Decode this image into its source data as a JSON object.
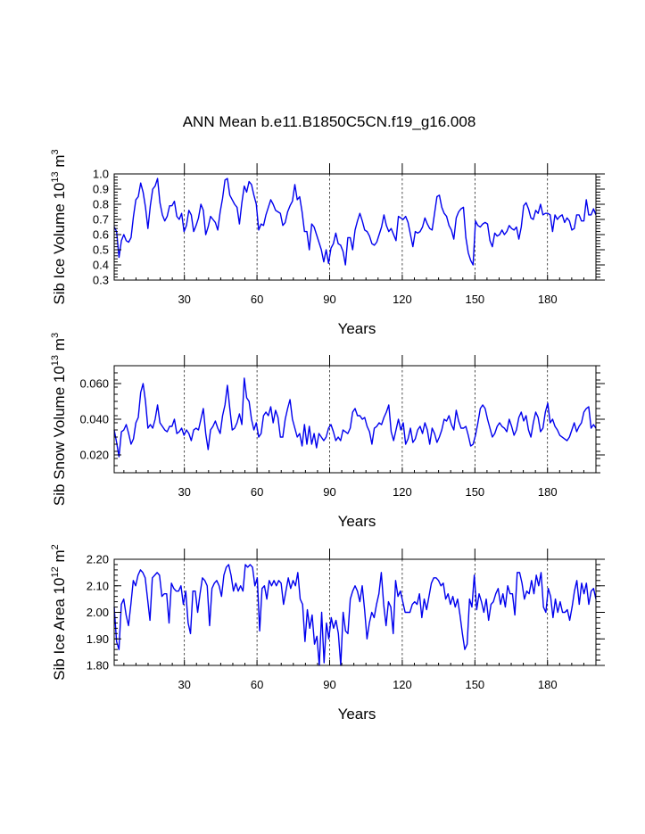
{
  "figure": {
    "title": "ANN Mean b.e11.B1850C5CN.f19_g16.008"
  },
  "colors": {
    "series": "#0000ee",
    "axes": "#000000",
    "background": "#ffffff"
  },
  "chart_data": [
    {
      "type": "line",
      "id": "vol",
      "ylabel": "Sib Ice Volume 10",
      "ylabel_exp": "13",
      "ylabel_unit": " m",
      "ylabel_unit_exp": "3",
      "xlabel": "Years",
      "xlim": [
        1,
        200
      ],
      "ylim": [
        0.3,
        1.0
      ],
      "xticks": [
        30,
        60,
        90,
        120,
        150,
        180
      ],
      "xtick_labels": [
        "30",
        "60",
        "90",
        "120",
        "150",
        "180"
      ],
      "yticks": [
        0.3,
        0.4,
        0.5,
        0.6,
        0.7,
        0.8,
        0.9,
        1.0
      ],
      "ytick_labels": [
        "0.3",
        "0.4",
        "0.5",
        "0.6",
        "0.7",
        "0.8",
        "0.9",
        "1.0"
      ],
      "yminor": 0.02,
      "grid": "dashed vertical lines at x ticks",
      "series": [
        {
          "name": "Sib Ice Volume",
          "values": [
            0.65,
            0.62,
            0.45,
            0.56,
            0.6,
            0.56,
            0.55,
            0.58,
            0.72,
            0.83,
            0.85,
            0.94,
            0.88,
            0.78,
            0.64,
            0.79,
            0.9,
            0.92,
            0.97,
            0.81,
            0.73,
            0.69,
            0.72,
            0.79,
            0.79,
            0.82,
            0.72,
            0.7,
            0.74,
            0.62,
            0.66,
            0.76,
            0.73,
            0.62,
            0.66,
            0.71,
            0.8,
            0.76,
            0.6,
            0.65,
            0.72,
            0.7,
            0.68,
            0.63,
            0.75,
            0.84,
            0.96,
            0.97,
            0.86,
            0.83,
            0.8,
            0.78,
            0.67,
            0.81,
            0.92,
            0.88,
            0.95,
            0.93,
            0.86,
            0.8,
            0.63,
            0.67,
            0.66,
            0.73,
            0.78,
            0.83,
            0.8,
            0.76,
            0.75,
            0.74,
            0.66,
            0.68,
            0.75,
            0.79,
            0.82,
            0.93,
            0.83,
            0.85,
            0.75,
            0.62,
            0.62,
            0.5,
            0.67,
            0.65,
            0.6,
            0.55,
            0.5,
            0.42,
            0.5,
            0.41,
            0.51,
            0.54,
            0.61,
            0.54,
            0.53,
            0.49,
            0.4,
            0.58,
            0.58,
            0.5,
            0.63,
            0.69,
            0.74,
            0.69,
            0.63,
            0.62,
            0.59,
            0.54,
            0.53,
            0.55,
            0.6,
            0.65,
            0.73,
            0.66,
            0.62,
            0.64,
            0.6,
            0.56,
            0.72,
            0.71,
            0.7,
            0.72,
            0.68,
            0.6,
            0.52,
            0.62,
            0.61,
            0.62,
            0.65,
            0.71,
            0.67,
            0.64,
            0.63,
            0.74,
            0.85,
            0.86,
            0.78,
            0.74,
            0.72,
            0.66,
            0.63,
            0.57,
            0.71,
            0.75,
            0.77,
            0.78,
            0.58,
            0.48,
            0.43,
            0.4,
            0.69,
            0.66,
            0.65,
            0.67,
            0.68,
            0.67,
            0.56,
            0.52,
            0.61,
            0.59,
            0.6,
            0.63,
            0.6,
            0.62,
            0.66,
            0.64,
            0.63,
            0.65,
            0.57,
            0.65,
            0.79,
            0.81,
            0.77,
            0.71,
            0.7,
            0.76,
            0.74,
            0.8,
            0.73,
            0.74,
            0.74,
            0.73,
            0.62,
            0.73,
            0.7,
            0.72,
            0.73,
            0.68,
            0.71,
            0.69,
            0.63,
            0.64,
            0.73,
            0.73,
            0.69,
            0.69,
            0.83,
            0.73,
            0.73,
            0.77,
            0.73
          ]
        }
      ]
    },
    {
      "type": "line",
      "id": "snow",
      "ylabel": "Sib Snow Volume 10",
      "ylabel_exp": "13",
      "ylabel_unit": " m",
      "ylabel_unit_exp": "3",
      "xlabel": "Years",
      "xlim": [
        1,
        200
      ],
      "ylim": [
        0.01,
        0.07
      ],
      "xticks": [
        30,
        60,
        90,
        120,
        150,
        180
      ],
      "xtick_labels": [
        "30",
        "60",
        "90",
        "120",
        "150",
        "180"
      ],
      "yticks": [
        0.02,
        0.04,
        0.06
      ],
      "ytick_labels": [
        "0.020",
        "0.040",
        "0.060"
      ],
      "yminor": 0.004,
      "grid": "dashed vertical lines at x ticks",
      "series": [
        {
          "name": "Sib Snow Volume",
          "values": [
            0.034,
            0.027,
            0.019,
            0.033,
            0.034,
            0.037,
            0.032,
            0.026,
            0.029,
            0.038,
            0.041,
            0.055,
            0.06,
            0.05,
            0.035,
            0.037,
            0.035,
            0.04,
            0.048,
            0.038,
            0.036,
            0.034,
            0.033,
            0.036,
            0.036,
            0.04,
            0.032,
            0.033,
            0.035,
            0.031,
            0.034,
            0.032,
            0.028,
            0.034,
            0.035,
            0.034,
            0.04,
            0.046,
            0.032,
            0.023,
            0.034,
            0.036,
            0.039,
            0.035,
            0.032,
            0.042,
            0.048,
            0.059,
            0.046,
            0.034,
            0.035,
            0.038,
            0.043,
            0.037,
            0.063,
            0.052,
            0.05,
            0.04,
            0.034,
            0.038,
            0.03,
            0.032,
            0.042,
            0.044,
            0.042,
            0.047,
            0.038,
            0.045,
            0.041,
            0.03,
            0.03,
            0.04,
            0.046,
            0.051,
            0.04,
            0.035,
            0.03,
            0.032,
            0.025,
            0.037,
            0.026,
            0.036,
            0.026,
            0.032,
            0.024,
            0.032,
            0.03,
            0.028,
            0.03,
            0.035,
            0.037,
            0.033,
            0.028,
            0.03,
            0.028,
            0.034,
            0.033,
            0.032,
            0.035,
            0.044,
            0.046,
            0.042,
            0.042,
            0.04,
            0.041,
            0.036,
            0.033,
            0.026,
            0.035,
            0.036,
            0.038,
            0.037,
            0.041,
            0.044,
            0.048,
            0.033,
            0.028,
            0.034,
            0.04,
            0.034,
            0.038,
            0.026,
            0.029,
            0.035,
            0.027,
            0.029,
            0.034,
            0.036,
            0.032,
            0.038,
            0.034,
            0.026,
            0.035,
            0.032,
            0.027,
            0.03,
            0.034,
            0.04,
            0.039,
            0.042,
            0.037,
            0.034,
            0.045,
            0.039,
            0.035,
            0.035,
            0.036,
            0.031,
            0.025,
            0.026,
            0.031,
            0.038,
            0.046,
            0.048,
            0.046,
            0.04,
            0.035,
            0.03,
            0.032,
            0.036,
            0.038,
            0.036,
            0.035,
            0.033,
            0.04,
            0.036,
            0.031,
            0.034,
            0.041,
            0.044,
            0.039,
            0.042,
            0.034,
            0.03,
            0.038,
            0.044,
            0.041,
            0.033,
            0.035,
            0.044,
            0.049,
            0.038,
            0.04,
            0.036,
            0.034,
            0.031,
            0.03,
            0.029,
            0.028,
            0.03,
            0.034,
            0.038,
            0.033,
            0.036,
            0.038,
            0.044,
            0.046,
            0.047,
            0.035,
            0.037,
            0.035
          ]
        }
      ]
    },
    {
      "type": "line",
      "id": "area",
      "ylabel": "Sib Ice Area 10",
      "ylabel_exp": "12",
      "ylabel_unit": " m",
      "ylabel_unit_exp": "2",
      "xlabel": "Years",
      "xlim": [
        1,
        200
      ],
      "ylim": [
        1.8,
        2.2
      ],
      "xticks": [
        30,
        60,
        90,
        120,
        150,
        180
      ],
      "xtick_labels": [
        "30",
        "60",
        "90",
        "120",
        "150",
        "180"
      ],
      "yticks": [
        1.8,
        1.9,
        2.0,
        2.1,
        2.2
      ],
      "ytick_labels": [
        "1.80",
        "1.90",
        "2.00",
        "2.10",
        "2.20"
      ],
      "yminor": 0.02,
      "grid": "dashed vertical lines at x ticks",
      "series": [
        {
          "name": "Sib Ice Area",
          "values": [
            2.02,
            1.89,
            1.86,
            2.03,
            2.05,
            1.99,
            1.95,
            2.03,
            2.12,
            2.1,
            2.14,
            2.16,
            2.15,
            2.13,
            2.05,
            1.97,
            2.13,
            2.14,
            2.15,
            2.14,
            2.06,
            2.07,
            2.07,
            1.96,
            2.11,
            2.09,
            2.08,
            2.08,
            2.1,
            2.03,
            2.08,
            1.96,
            1.92,
            2.08,
            2.08,
            2.0,
            2.07,
            2.13,
            2.12,
            2.1,
            1.95,
            2.09,
            2.11,
            2.12,
            2.1,
            2.06,
            2.14,
            2.17,
            2.18,
            2.14,
            2.08,
            2.11,
            2.08,
            2.1,
            2.08,
            2.18,
            2.17,
            2.18,
            2.17,
            2.1,
            2.13,
            1.93,
            2.09,
            2.1,
            2.05,
            2.12,
            2.1,
            2.12,
            2.1,
            2.12,
            2.11,
            2.03,
            2.08,
            2.13,
            2.09,
            2.12,
            2.1,
            2.15,
            2.05,
            2.03,
            1.89,
            2.01,
            1.94,
            1.99,
            1.88,
            1.91,
            1.8,
            2.0,
            1.81,
            1.96,
            1.9,
            1.98,
            1.94,
            1.97,
            1.92,
            1.8,
            2.0,
            1.93,
            1.92,
            2.05,
            2.08,
            2.1,
            2.08,
            2.04,
            2.1,
            2.01,
            1.9,
            1.96,
            2.0,
            1.98,
            2.03,
            2.07,
            2.15,
            2.03,
            1.95,
            2.04,
            2.02,
            1.92,
            2.12,
            2.06,
            2.08,
            2.04,
            2.0,
            2.0,
            2.0,
            2.03,
            2.04,
            2.03,
            2.07,
            1.98,
            2.05,
            2.01,
            2.06,
            2.11,
            2.13,
            2.13,
            2.12,
            2.1,
            2.11,
            2.05,
            2.07,
            2.03,
            2.06,
            2.02,
            2.05,
            1.99,
            1.92,
            1.86,
            1.88,
            2.05,
            2.02,
            2.14,
            2.01,
            2.07,
            2.04,
            2.0,
            2.05,
            1.97,
            2.03,
            2.04,
            2.07,
            2.09,
            2.03,
            2.07,
            2.02,
            2.1,
            2.07,
            2.07,
            1.99,
            2.15,
            2.15,
            2.11,
            2.05,
            2.08,
            2.07,
            2.12,
            2.07,
            2.14,
            2.1,
            2.15,
            2.02,
            2.0,
            2.09,
            2.06,
            1.98,
            2.05,
            2.0,
            2.04,
            2.0,
            2.0,
            2.01,
            1.97,
            2.02,
            2.08,
            2.12,
            2.03,
            2.11,
            2.07,
            2.11,
            2.03,
            2.08,
            2.09,
            2.05
          ]
        }
      ]
    }
  ]
}
